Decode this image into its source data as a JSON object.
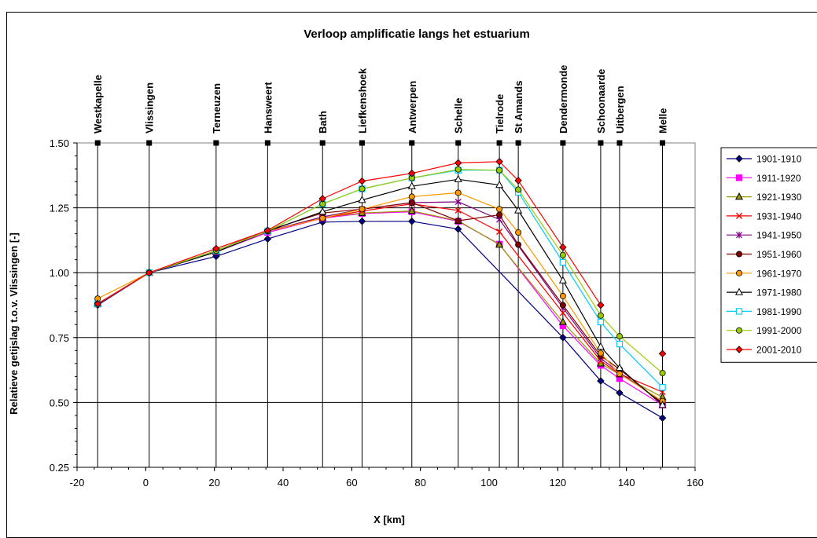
{
  "chart_data": {
    "type": "line",
    "title": "Verloop amplificatie langs het estuarium",
    "xlabel": "X [km]",
    "ylabel": "Relatieve getijslag t.o.v. Vlissingen [-]",
    "xlim": [
      -20,
      160
    ],
    "ylim": [
      0.25,
      1.5
    ],
    "xticks": [
      -20,
      0,
      20,
      40,
      60,
      80,
      100,
      120,
      140,
      160
    ],
    "yticks": [
      0.25,
      0.5,
      0.75,
      1.0,
      1.25,
      1.5
    ],
    "xtick_labels": [
      "-20",
      "0",
      "20",
      "40",
      "60",
      "80",
      "100",
      "120",
      "140",
      "160"
    ],
    "ytick_labels": [
      "0.25",
      "0.50",
      "0.75",
      "1.00",
      "1.25",
      "1.50"
    ],
    "grid": true,
    "legend_position": "right",
    "stations": [
      {
        "name": "Westkapelle",
        "x": -14
      },
      {
        "name": "Vlissingen",
        "x": 1
      },
      {
        "name": "Terneuzen",
        "x": 20.5
      },
      {
        "name": "Hansweert",
        "x": 35.5
      },
      {
        "name": "Bath",
        "x": 51.5
      },
      {
        "name": "Liefkenshoek",
        "x": 63
      },
      {
        "name": "Antwerpen",
        "x": 77.5
      },
      {
        "name": "Schelle",
        "x": 91
      },
      {
        "name": "Tielrode",
        "x": 103
      },
      {
        "name": "St Amands",
        "x": 108.5
      },
      {
        "name": "Dendermonde",
        "x": 121.5
      },
      {
        "name": "Schoonaarde",
        "x": 132.5
      },
      {
        "name": "Uitbergen",
        "x": 138
      },
      {
        "name": "Melle",
        "x": 150.5
      }
    ],
    "series": [
      {
        "name": "1901-1910",
        "color": "#000080",
        "marker": "diamond",
        "filled": true,
        "points": [
          [
            -14,
            0.875
          ],
          [
            1,
            1.0
          ],
          [
            20.5,
            1.063
          ],
          [
            35.5,
            1.13
          ],
          [
            51.5,
            1.195
          ],
          [
            63,
            1.198
          ],
          [
            77.5,
            1.198
          ],
          [
            91,
            1.168
          ],
          [
            121.5,
            0.75
          ],
          [
            132.5,
            0.583
          ],
          [
            138,
            0.537
          ],
          [
            150.5,
            0.44
          ]
        ]
      },
      {
        "name": "1911-1920",
        "color": "#FF00FF",
        "marker": "square",
        "filled": true,
        "points": [
          [
            -14,
            0.88
          ],
          [
            1,
            1.0
          ],
          [
            20.5,
            1.08
          ],
          [
            35.5,
            1.155
          ],
          [
            51.5,
            1.21
          ],
          [
            63,
            1.228
          ],
          [
            77.5,
            1.235
          ],
          [
            91,
            1.198
          ],
          [
            103,
            1.11
          ],
          [
            121.5,
            0.795
          ],
          [
            132.5,
            0.643
          ],
          [
            138,
            0.592
          ],
          [
            150.5,
            0.49
          ]
        ]
      },
      {
        "name": "1921-1930",
        "color": "#999900",
        "marker": "triangle",
        "filled": true,
        "points": [
          [
            -14,
            0.88
          ],
          [
            1,
            1.0
          ],
          [
            20.5,
            1.08
          ],
          [
            35.5,
            1.16
          ],
          [
            51.5,
            1.213
          ],
          [
            63,
            1.23
          ],
          [
            77.5,
            1.238
          ],
          [
            91,
            1.2
          ],
          [
            103,
            1.108
          ],
          [
            121.5,
            0.81
          ],
          [
            132.5,
            0.65
          ],
          [
            138,
            0.608
          ],
          [
            150.5,
            0.52
          ]
        ]
      },
      {
        "name": "1931-1940",
        "color": "#FF0000",
        "marker": "x",
        "filled": false,
        "points": [
          [
            -14,
            0.878
          ],
          [
            1,
            1.0
          ],
          [
            20.5,
            1.083
          ],
          [
            35.5,
            1.16
          ],
          [
            51.5,
            1.21
          ],
          [
            63,
            1.238
          ],
          [
            77.5,
            1.265
          ],
          [
            91,
            1.24
          ],
          [
            103,
            1.158
          ],
          [
            121.5,
            0.845
          ],
          [
            132.5,
            0.66
          ],
          [
            138,
            0.61
          ],
          [
            150.5,
            0.54
          ]
        ]
      },
      {
        "name": "1941-1950",
        "color": "#800080",
        "marker": "star",
        "filled": false,
        "points": [
          [
            -14,
            0.878
          ],
          [
            1,
            1.0
          ],
          [
            20.5,
            1.083
          ],
          [
            35.5,
            1.16
          ],
          [
            51.5,
            1.215
          ],
          [
            63,
            1.245
          ],
          [
            77.5,
            1.27
          ],
          [
            91,
            1.273
          ],
          [
            103,
            1.205
          ],
          [
            121.5,
            0.865
          ],
          [
            132.5,
            0.67
          ],
          [
            138,
            0.615
          ],
          [
            150.5,
            0.5
          ]
        ]
      },
      {
        "name": "1951-1960",
        "color": "#800000",
        "marker": "circle",
        "filled": true,
        "points": [
          [
            -14,
            0.88
          ],
          [
            1,
            1.0
          ],
          [
            20.5,
            1.085
          ],
          [
            35.5,
            1.163
          ],
          [
            51.5,
            1.23
          ],
          [
            63,
            1.245
          ],
          [
            77.5,
            1.27
          ],
          [
            91,
            1.2
          ],
          [
            103,
            1.223
          ],
          [
            108.5,
            1.108
          ],
          [
            121.5,
            0.875
          ],
          [
            132.5,
            0.68
          ],
          [
            138,
            0.628
          ],
          [
            150.5,
            0.495
          ]
        ]
      },
      {
        "name": "1961-1970",
        "color": "#FF9900",
        "marker": "circle",
        "filled": true,
        "points": [
          [
            -14,
            0.9
          ],
          [
            1,
            1.0
          ],
          [
            20.5,
            1.083
          ],
          [
            35.5,
            1.16
          ],
          [
            51.5,
            1.21
          ],
          [
            63,
            1.245
          ],
          [
            77.5,
            1.293
          ],
          [
            91,
            1.308
          ],
          [
            103,
            1.245
          ],
          [
            108.5,
            1.155
          ],
          [
            121.5,
            0.91
          ],
          [
            132.5,
            0.69
          ],
          [
            138,
            0.61
          ],
          [
            150.5,
            0.505
          ]
        ]
      },
      {
        "name": "1971-1980",
        "color": "#000000",
        "marker": "triangle",
        "filled": false,
        "points": [
          [
            -14,
            0.88
          ],
          [
            1,
            1.0
          ],
          [
            20.5,
            1.08
          ],
          [
            35.5,
            1.16
          ],
          [
            51.5,
            1.235
          ],
          [
            63,
            1.28
          ],
          [
            77.5,
            1.333
          ],
          [
            91,
            1.36
          ],
          [
            103,
            1.338
          ],
          [
            108.5,
            1.24
          ],
          [
            121.5,
            0.97
          ],
          [
            132.5,
            0.715
          ],
          [
            138,
            0.633
          ],
          [
            150.5,
            0.49
          ]
        ]
      },
      {
        "name": "1981-1990",
        "color": "#00CCFF",
        "marker": "square",
        "filled": false,
        "points": [
          [
            -14,
            0.88
          ],
          [
            1,
            1.0
          ],
          [
            20.5,
            1.085
          ],
          [
            35.5,
            1.16
          ],
          [
            51.5,
            1.265
          ],
          [
            63,
            1.323
          ],
          [
            77.5,
            1.365
          ],
          [
            91,
            1.395
          ],
          [
            103,
            1.395
          ],
          [
            108.5,
            1.31
          ],
          [
            121.5,
            1.04
          ],
          [
            132.5,
            0.81
          ],
          [
            138,
            0.725
          ],
          [
            150.5,
            0.558
          ]
        ]
      },
      {
        "name": "1991-2000",
        "color": "#99CC00",
        "marker": "circle",
        "filled": true,
        "points": [
          [
            -14,
            0.88
          ],
          [
            1,
            1.0
          ],
          [
            20.5,
            1.085
          ],
          [
            35.5,
            1.16
          ],
          [
            51.5,
            1.265
          ],
          [
            63,
            1.323
          ],
          [
            77.5,
            1.365
          ],
          [
            91,
            1.398
          ],
          [
            103,
            1.395
          ],
          [
            108.5,
            1.32
          ],
          [
            121.5,
            1.068
          ],
          [
            132.5,
            0.835
          ],
          [
            138,
            0.755
          ],
          [
            150.5,
            0.613
          ]
        ]
      },
      {
        "name": "2001-2010",
        "color": "#FF0000",
        "marker": "diamond",
        "filled": true,
        "points": [
          [
            -14,
            0.88
          ],
          [
            1,
            1.0
          ],
          [
            20.5,
            1.093
          ],
          [
            35.5,
            1.163
          ],
          [
            51.5,
            1.285
          ],
          [
            63,
            1.353
          ],
          [
            77.5,
            1.383
          ],
          [
            91,
            1.423
          ],
          [
            103,
            1.428
          ],
          [
            108.5,
            1.355
          ],
          [
            121.5,
            1.098
          ],
          [
            132.5,
            0.875
          ],
          null,
          [
            150.5,
            0.688
          ]
        ]
      }
    ]
  }
}
